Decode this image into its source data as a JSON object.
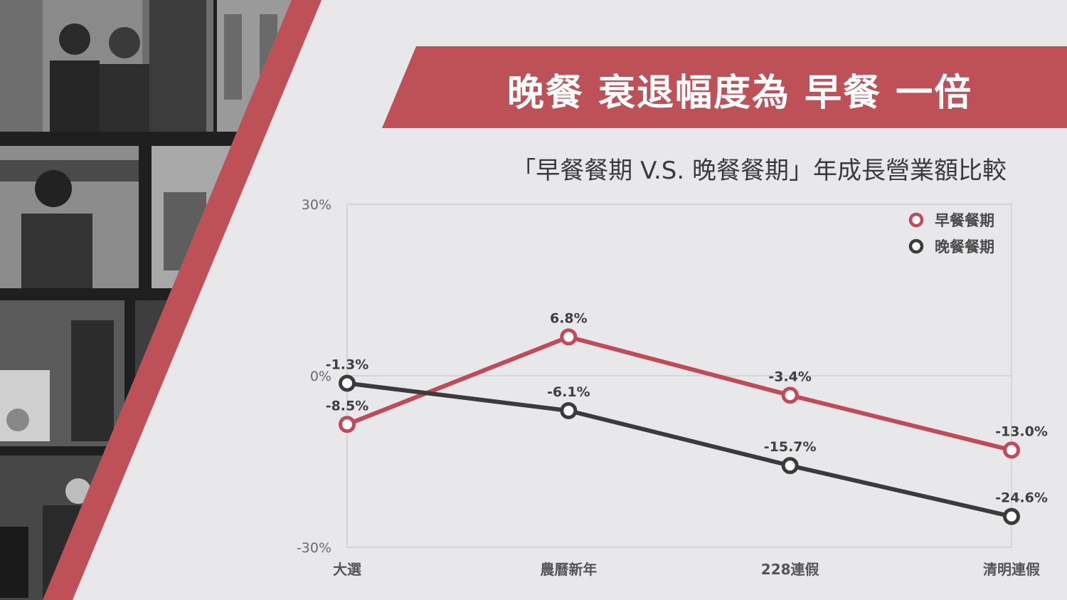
{
  "slide": {
    "title": "晚餐 衰退幅度為 早餐 一倍",
    "subtitle": "「早餐餐期 V.S. 晚餐餐期」年成長營業額比較"
  },
  "colors": {
    "brand_red": "#bd5157",
    "series_breakfast": "#c04a58",
    "series_dinner": "#3b3b3b",
    "background": "#e8e7ea"
  },
  "chart_data": {
    "type": "line",
    "title": "「早餐餐期 V.S. 晚餐餐期」年成長營業額比較",
    "categories": [
      "大選",
      "農曆新年",
      "228連假",
      "清明連假"
    ],
    "y_ticks": [
      "30%",
      "0%",
      "-30%"
    ],
    "ylim": [
      -30,
      30
    ],
    "grid": "horizontal line at 0%",
    "legend_position": "top-right",
    "series": [
      {
        "name": "早餐餐期",
        "values": [
          -8.5,
          6.8,
          -3.4,
          -13.0
        ],
        "labels": [
          "-8.5%",
          "6.8%",
          "-3.4%",
          "-13.0%"
        ],
        "color": "#c04a58"
      },
      {
        "name": "晚餐餐期",
        "values": [
          -1.3,
          -6.1,
          -15.7,
          -24.6
        ],
        "labels": [
          "-1.3%",
          "-6.1%",
          "-15.7%",
          "-24.6%"
        ],
        "color": "#3b3b3b"
      }
    ]
  }
}
